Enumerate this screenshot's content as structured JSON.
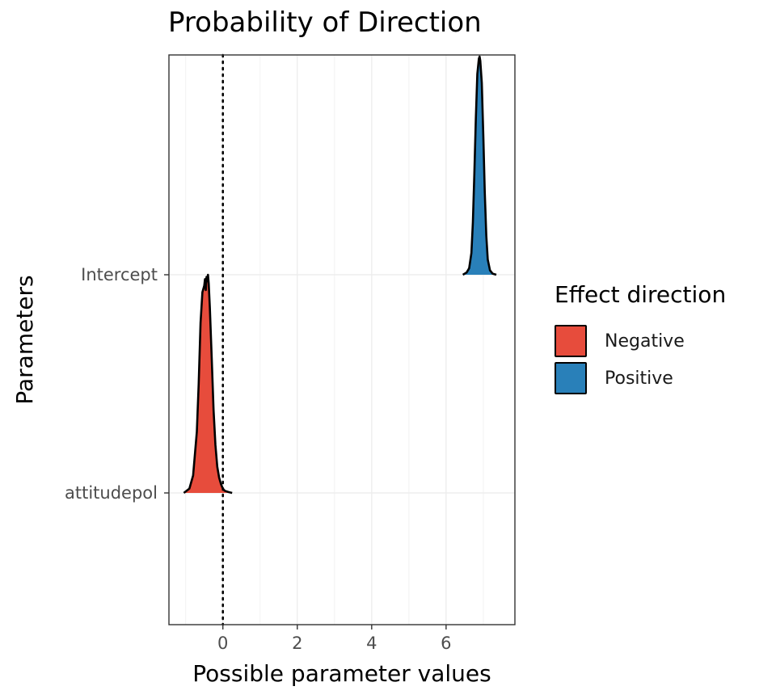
{
  "chart_data": {
    "type": "area",
    "title": "Probability of Direction",
    "xlabel": "Possible parameter values",
    "ylabel": "Parameters",
    "xlim": [
      -1.45,
      7.85
    ],
    "x_ticks": [
      0,
      2,
      4,
      6
    ],
    "y_categories": [
      "attitudepol",
      "Intercept"
    ],
    "reference_line_x": 0,
    "grid": true,
    "legend": {
      "title": "Effect direction",
      "placement": "right",
      "entries": [
        {
          "label": "Negative",
          "color": "#e74c3c"
        },
        {
          "label": "Positive",
          "color": "#2980b9"
        }
      ]
    },
    "series": [
      {
        "parameter": "attitudepol",
        "direction": "Negative",
        "x": [
          -1.05,
          -0.9,
          -0.8,
          -0.7,
          -0.65,
          -0.6,
          -0.55,
          -0.5,
          -0.48,
          -0.46,
          -0.44,
          -0.42,
          -0.4,
          -0.38,
          -0.35,
          -0.3,
          -0.25,
          -0.2,
          -0.15,
          -0.1,
          -0.05,
          0.0,
          0.05,
          0.15,
          0.25
        ],
        "density": [
          0.0,
          0.02,
          0.08,
          0.28,
          0.5,
          0.78,
          0.92,
          0.95,
          0.98,
          0.93,
          0.99,
          0.97,
          1.0,
          0.96,
          0.85,
          0.62,
          0.38,
          0.22,
          0.12,
          0.07,
          0.04,
          0.02,
          0.01,
          0.004,
          0.0
        ]
      },
      {
        "parameter": "Intercept",
        "direction": "Positive",
        "x": [
          6.45,
          6.55,
          6.62,
          6.68,
          6.72,
          6.76,
          6.8,
          6.84,
          6.88,
          6.9,
          6.92,
          6.96,
          7.0,
          7.04,
          7.08,
          7.12,
          7.18,
          7.25,
          7.35
        ],
        "density": [
          0.0,
          0.01,
          0.03,
          0.1,
          0.24,
          0.46,
          0.72,
          0.92,
          0.99,
          1.0,
          0.98,
          0.88,
          0.64,
          0.38,
          0.18,
          0.07,
          0.02,
          0.005,
          0.0
        ]
      }
    ]
  }
}
